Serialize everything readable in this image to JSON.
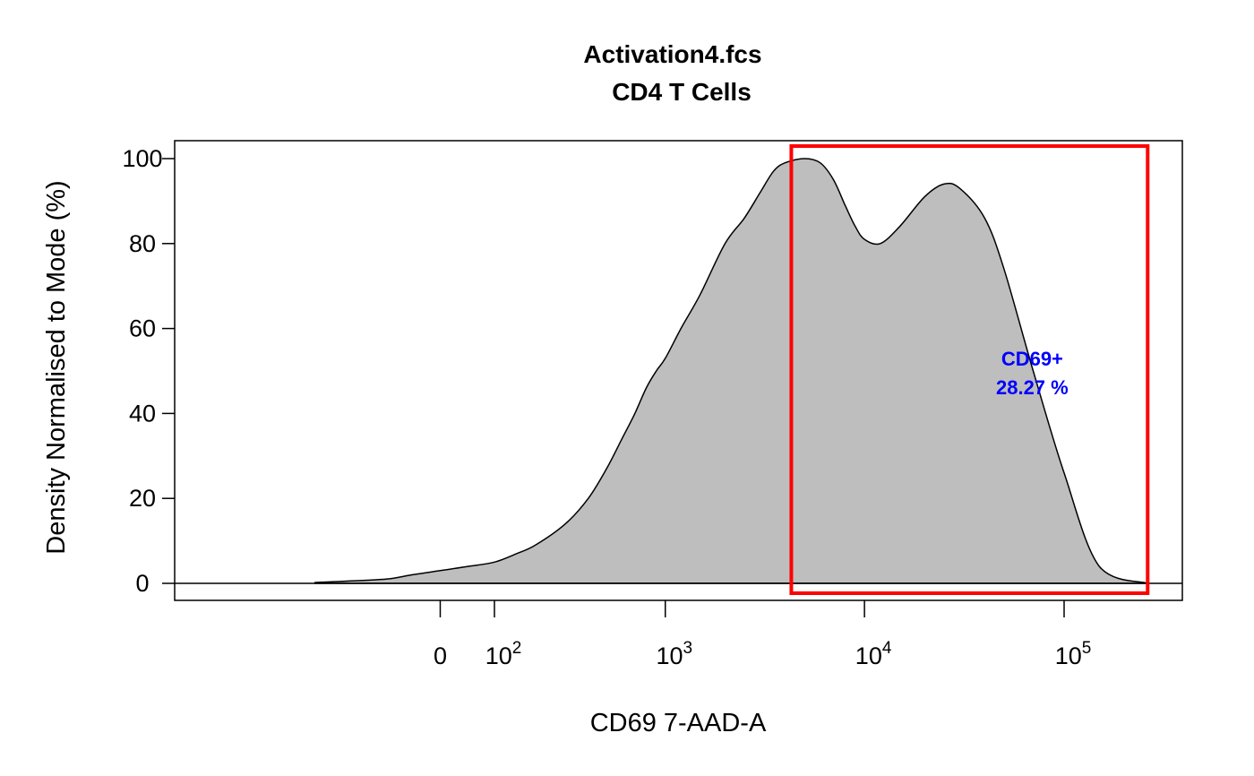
{
  "chart_data": {
    "type": "area",
    "title": "Activation4.fcs",
    "subtitle": "CD4 T Cells",
    "xlabel": "CD69 7-AAD-A",
    "ylabel": "Density Normalised to Mode (%)",
    "ylim": [
      0,
      100
    ],
    "y_ticks": [
      0,
      20,
      40,
      60,
      80,
      100
    ],
    "x_scale": "biexponential",
    "x_ticks": [
      {
        "value": 0,
        "label": "0"
      },
      {
        "value": 100,
        "label": "10",
        "exp": "2"
      },
      {
        "value": 1000,
        "label": "10",
        "exp": "3"
      },
      {
        "value": 10000,
        "label": "10",
        "exp": "4"
      },
      {
        "value": 100000,
        "label": "10",
        "exp": "5"
      }
    ],
    "density": {
      "x": [
        -300,
        -200,
        -100,
        -50,
        0,
        50,
        100,
        150,
        200,
        300,
        400,
        500,
        600,
        700,
        800,
        900,
        1000,
        1200,
        1500,
        2000,
        2500,
        3000,
        3500,
        4000,
        5000,
        6000,
        7000,
        8000,
        9000,
        10000,
        12000,
        15000,
        20000,
        25000,
        30000,
        40000,
        50000,
        70000,
        100000,
        150000,
        262143
      ],
      "y": [
        0.2,
        0.5,
        1.0,
        2.0,
        3.0,
        4.0,
        5.0,
        7.0,
        9.0,
        14.0,
        20.0,
        27.0,
        34.0,
        40.0,
        46.0,
        50.0,
        53.0,
        60.0,
        68.0,
        80.0,
        86.0,
        92.0,
        97.0,
        99.0,
        100.0,
        99.0,
        95.0,
        89.0,
        84.0,
        81.0,
        80.0,
        84.0,
        91.0,
        94.0,
        93.0,
        86.0,
        74.0,
        50.0,
        26.0,
        4.0,
        0.0
      ]
    },
    "gate": {
      "name": "CD69+",
      "percent": "28.27 %",
      "xmin": 4300,
      "xmax": 262143,
      "color": "#ff0000",
      "label_color": "#0000ff"
    },
    "fill_color": "#bebebe",
    "grid": false,
    "legend": "none"
  }
}
